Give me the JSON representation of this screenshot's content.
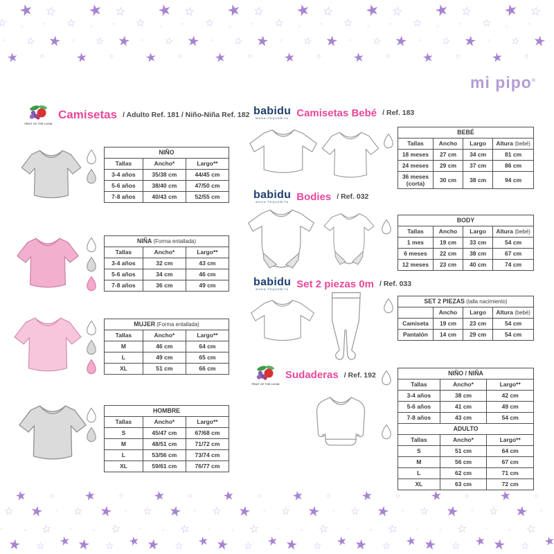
{
  "brand": {
    "name": "mi pipo",
    "registered": "®"
  },
  "logos": {
    "fruit_text": "FRUIT OF THE LOOM.",
    "babidu_name": "babidu",
    "babidu_tagline": "moda pequeñita"
  },
  "sections": {
    "camisetas": {
      "title": "Camisetas",
      "ref": "/ Adulto Ref. 181 / Niño-Niña Ref. 182"
    },
    "camisetas_bebe": {
      "title": "Camisetas Bebé",
      "ref": "/ Ref. 183"
    },
    "bodies": {
      "title": "Bodies",
      "ref": "/ Ref. 032"
    },
    "set2piezas": {
      "title": "Set 2 piezas 0m",
      "ref": "/ Ref. 033"
    },
    "sudaderas": {
      "title": "Sudaderas",
      "ref": "/ Ref. 192"
    }
  },
  "tables": {
    "nino": {
      "title": "NIÑO",
      "note": "",
      "headers": [
        "Tallas",
        "Ancho*",
        "Largo**"
      ],
      "rows": [
        [
          "3-4 años",
          "35/38 cm",
          "44/45 cm"
        ],
        [
          "5-6 años",
          "38/40 cm",
          "47/50 cm"
        ],
        [
          "7-8 años",
          "40/43 cm",
          "52/55 cm"
        ]
      ],
      "drops": [
        "white",
        "grey"
      ]
    },
    "nina": {
      "title": "NIÑA",
      "note": "(Forma entallada)",
      "headers": [
        "Tallas",
        "Ancho*",
        "Largo**"
      ],
      "rows": [
        [
          "3-4 años",
          "32 cm",
          "43 cm"
        ],
        [
          "5-6 años",
          "34 cm",
          "46 cm"
        ],
        [
          "7-8 años",
          "36 cm",
          "49 cm"
        ]
      ],
      "drops": [
        "white",
        "grey",
        "pink"
      ]
    },
    "mujer": {
      "title": "MUJER",
      "note": "(Forma entallada)",
      "headers": [
        "Tallas",
        "Ancho*",
        "Largo**"
      ],
      "rows": [
        [
          "M",
          "46 cm",
          "64 cm"
        ],
        [
          "L",
          "49 cm",
          "65 cm"
        ],
        [
          "XL",
          "51 cm",
          "66 cm"
        ]
      ],
      "drops": [
        "white",
        "grey",
        "pink"
      ]
    },
    "hombre": {
      "title": "HOMBRE",
      "note": "",
      "headers": [
        "Tallas",
        "Ancho*",
        "Largo**"
      ],
      "rows": [
        [
          "S",
          "45/47 cm",
          "67/68 cm"
        ],
        [
          "M",
          "48/51 cm",
          "71/72 cm"
        ],
        [
          "L",
          "53/56 cm",
          "73/74 cm"
        ],
        [
          "XL",
          "59/61 cm",
          "76/77 cm"
        ]
      ],
      "drops": [
        "white",
        "grey"
      ]
    },
    "bebe": {
      "title": "BEBÉ",
      "note": "",
      "headers": [
        "Tallas",
        "Ancho",
        "Largo",
        "Altura (bebé)"
      ],
      "rows": [
        [
          "18 meses",
          "27 cm",
          "34 cm",
          "81 cm"
        ],
        [
          "24 meses",
          "29 cm",
          "37 cm",
          "86 cm"
        ],
        [
          "36 meses\n(corta)",
          "30 cm",
          "38 cm",
          "94 cm"
        ]
      ],
      "drops": [
        "white"
      ]
    },
    "body": {
      "title": "BODY",
      "note": "",
      "headers": [
        "Tallas",
        "Ancho",
        "Largo",
        "Altura (bebé)"
      ],
      "rows": [
        [
          "1 mes",
          "19 cm",
          "33 cm",
          "54 cm"
        ],
        [
          "6 meses",
          "22 cm",
          "38 cm",
          "67 cm"
        ],
        [
          "12 meses",
          "23 cm",
          "40 cm",
          "74 cm"
        ]
      ],
      "drops": [
        "white"
      ]
    },
    "set2piezas": {
      "title": "SET 2 PIEZAS",
      "note": "(talla nacimiento)",
      "headers": [
        "",
        "Ancho",
        "Largo",
        "Altura (bebé)"
      ],
      "rows": [
        [
          "Camiseta",
          "19 cm",
          "23 cm",
          "54 cm"
        ],
        [
          "Pantalón",
          "14 cm",
          "29 cm",
          "54 cm"
        ]
      ],
      "bold_first": true,
      "drops": [
        "white"
      ]
    },
    "nino_nina": {
      "title": "NIÑO / NIÑA",
      "note": "",
      "headers": [
        "Tallas",
        "Ancho*",
        "Largo**"
      ],
      "rows": [
        [
          "3-4 años",
          "38 cm",
          "42 cm"
        ],
        [
          "5-6 años",
          "41 cm",
          "49 cm"
        ],
        [
          "7-8 años",
          "43 cm",
          "54 cm"
        ]
      ],
      "drops": [
        "white"
      ]
    },
    "adulto": {
      "title": "ADULTO",
      "note": "",
      "headers": [
        "Tallas",
        "Ancho*",
        "Largo**"
      ],
      "rows": [
        [
          "S",
          "51 cm",
          "64 cm"
        ],
        [
          "M",
          "56 cm",
          "67 cm"
        ],
        [
          "L",
          "62 cm",
          "71 cm"
        ],
        [
          "XL",
          "63 cm",
          "72 cm"
        ]
      ],
      "drops": [
        "white"
      ]
    }
  },
  "colors": {
    "accent_pink": "#e8489b",
    "babidu_navy": "#1c3e6e",
    "mipipo_purple": "#b29dd5",
    "star_fill": "#a784d1",
    "star_outline": "#c8b7e6"
  }
}
